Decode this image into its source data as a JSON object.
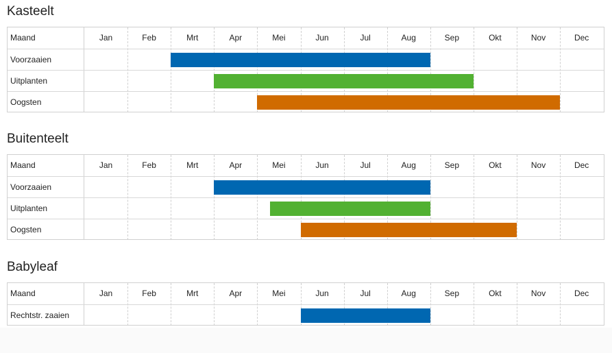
{
  "months": [
    "Jan",
    "Feb",
    "Mrt",
    "Apr",
    "Mei",
    "Jun",
    "Jul",
    "Aug",
    "Sep",
    "Okt",
    "Nov",
    "Dec"
  ],
  "header_label": "Maand",
  "colors": {
    "sow": "#0067b1",
    "plant": "#52b132",
    "harvest": "#d06b00"
  },
  "chart_data": [
    {
      "type": "gantt",
      "title": "Kasteelt",
      "tasks": [
        {
          "label": "Voorzaaien",
          "start": 3.0,
          "end": 9.0,
          "color": "sow"
        },
        {
          "label": "Uitplanten",
          "start": 4.0,
          "end": 10.0,
          "color": "plant"
        },
        {
          "label": "Oogsten",
          "start": 5.0,
          "end": 12.0,
          "color": "harvest"
        }
      ]
    },
    {
      "type": "gantt",
      "title": "Buitenteelt",
      "tasks": [
        {
          "label": "Voorzaaien",
          "start": 4.0,
          "end": 9.0,
          "color": "sow"
        },
        {
          "label": "Uitplanten",
          "start": 5.3,
          "end": 9.0,
          "color": "plant"
        },
        {
          "label": "Oogsten",
          "start": 6.0,
          "end": 11.0,
          "color": "harvest"
        }
      ]
    },
    {
      "type": "gantt",
      "title": "Babyleaf",
      "tasks": [
        {
          "label": "Rechtstr. zaaien",
          "start": 6.0,
          "end": 9.0,
          "color": "sow"
        }
      ]
    }
  ]
}
